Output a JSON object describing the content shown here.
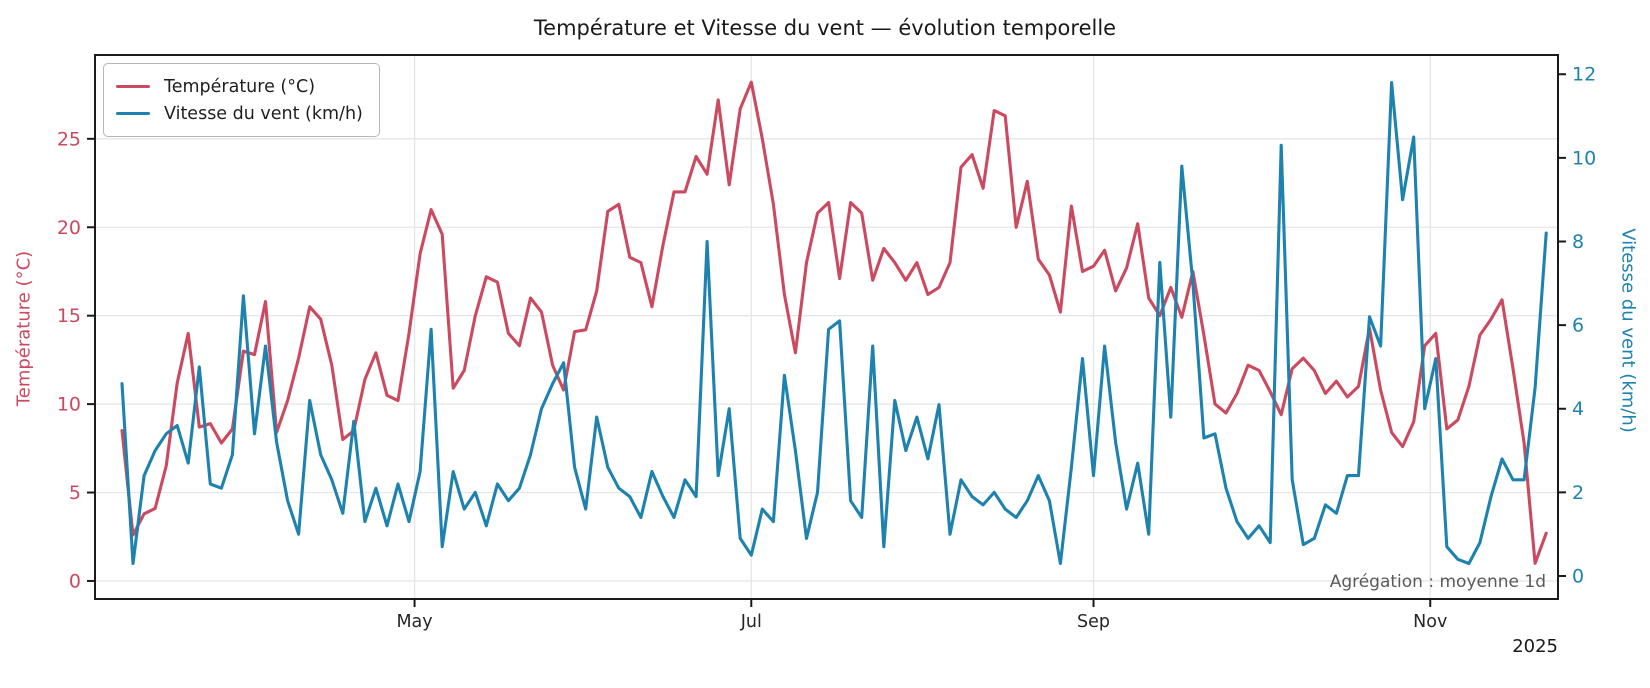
{
  "page": {
    "title": "Température et Vitesse du vent — évolution temporelle",
    "annotation": "Agrégation : moyenne 1d",
    "year_label": "2025"
  },
  "legend": {
    "position": "upper left",
    "items": [
      {
        "label": "Température (°C)",
        "color": "#cb4a60"
      },
      {
        "label": "Vitesse du vent (km/h)",
        "color": "#1e82ae"
      }
    ]
  },
  "chart_data": {
    "type": "line",
    "title": "Température et Vitesse du vent — évolution temporelle",
    "annotation": "Agrégation : moyenne 1d",
    "year_label": "2025",
    "grid": true,
    "legend_position": "upper left",
    "start_date": "2025-03-09",
    "step_days": 2,
    "x_ticks": [
      {
        "label": "May",
        "day": 53
      },
      {
        "label": "Jul",
        "day": 114
      },
      {
        "label": "Sep",
        "day": 176
      },
      {
        "label": "Nov",
        "day": 237
      }
    ],
    "left_axis": {
      "label": "Température (°C)",
      "ticks": [
        0,
        5,
        10,
        15,
        20,
        25
      ],
      "min": -1.02,
      "max": 29.74,
      "color": "#cb4a60"
    },
    "right_axis": {
      "label": "Vitesse du vent (km/h)",
      "ticks": [
        0,
        2,
        4,
        6,
        8,
        10,
        12
      ],
      "min": -0.55,
      "max": 12.46,
      "color": "#1e82ae"
    },
    "series": [
      {
        "name": "Température (°C)",
        "axis": "left",
        "color": "#cb4a60",
        "values": [
          8.5,
          2.6,
          3.8,
          4.1,
          6.5,
          11.2,
          14.0,
          8.7,
          8.9,
          7.8,
          8.6,
          13.0,
          12.8,
          15.8,
          8.4,
          10.2,
          12.6,
          15.5,
          14.8,
          12.2,
          8.0,
          8.5,
          11.4,
          12.9,
          10.5,
          10.2,
          14.0,
          18.5,
          21.0,
          19.6,
          10.9,
          11.9,
          15.0,
          17.2,
          16.9,
          14.0,
          13.3,
          16.0,
          15.2,
          12.2,
          10.8,
          14.1,
          14.2,
          16.4,
          20.9,
          21.3,
          18.3,
          18.0,
          15.5,
          19.0,
          22.0,
          22.0,
          24.0,
          23.0,
          27.2,
          22.4,
          26.7,
          28.2,
          25.0,
          21.3,
          16.2,
          12.9,
          18.0,
          20.8,
          21.4,
          17.1,
          21.4,
          20.8,
          17.0,
          18.8,
          18.0,
          17.0,
          18.0,
          16.2,
          16.6,
          18.0,
          23.4,
          24.1,
          22.2,
          26.6,
          26.3,
          20.0,
          22.6,
          18.2,
          17.3,
          15.2,
          21.2,
          17.5,
          17.8,
          18.7,
          16.4,
          17.7,
          20.2,
          16.0,
          15.0,
          16.6,
          14.9,
          17.5,
          13.9,
          10.0,
          9.5,
          10.6,
          12.2,
          11.9,
          10.7,
          9.4,
          12.0,
          12.6,
          11.9,
          10.6,
          11.3,
          10.4,
          11.0,
          14.3,
          10.8,
          8.4,
          7.6,
          9.0,
          13.3,
          14.0,
          8.6,
          9.1,
          11.0,
          13.9,
          14.8,
          15.9,
          12.0,
          7.8,
          1.0,
          2.7
        ]
      },
      {
        "name": "Vitesse du vent (km/h)",
        "axis": "right",
        "color": "#1e82ae",
        "values": [
          4.6,
          0.3,
          2.4,
          3.0,
          3.4,
          3.6,
          2.7,
          5.0,
          2.2,
          2.1,
          2.9,
          6.7,
          3.4,
          5.5,
          3.2,
          1.8,
          1.0,
          4.2,
          2.9,
          2.3,
          1.5,
          3.7,
          1.3,
          2.1,
          1.2,
          2.2,
          1.3,
          2.5,
          5.9,
          0.7,
          2.5,
          1.6,
          2.0,
          1.2,
          2.2,
          1.8,
          2.1,
          2.9,
          4.0,
          4.6,
          5.1,
          2.6,
          1.6,
          3.8,
          2.6,
          2.1,
          1.9,
          1.4,
          2.5,
          1.9,
          1.4,
          2.3,
          1.9,
          8.0,
          2.4,
          4.0,
          0.9,
          0.5,
          1.6,
          1.3,
          4.8,
          3.0,
          0.9,
          2.0,
          5.9,
          6.1,
          1.8,
          1.4,
          5.5,
          0.7,
          4.2,
          3.0,
          3.8,
          2.8,
          4.1,
          1.0,
          2.3,
          1.9,
          1.7,
          2.0,
          1.6,
          1.4,
          1.8,
          2.4,
          1.8,
          0.3,
          2.6,
          5.2,
          2.4,
          5.5,
          3.2,
          1.6,
          2.7,
          1.0,
          7.5,
          3.8,
          9.8,
          7.0,
          3.3,
          3.4,
          2.1,
          1.3,
          0.9,
          1.2,
          0.8,
          10.3,
          2.3,
          0.75,
          0.9,
          1.7,
          1.5,
          2.4,
          2.4,
          6.2,
          5.5,
          11.8,
          9.0,
          10.5,
          4.0,
          5.2,
          0.7,
          0.4,
          0.3,
          0.8,
          1.9,
          2.8,
          2.3,
          2.3,
          4.5,
          8.2
        ]
      }
    ]
  }
}
